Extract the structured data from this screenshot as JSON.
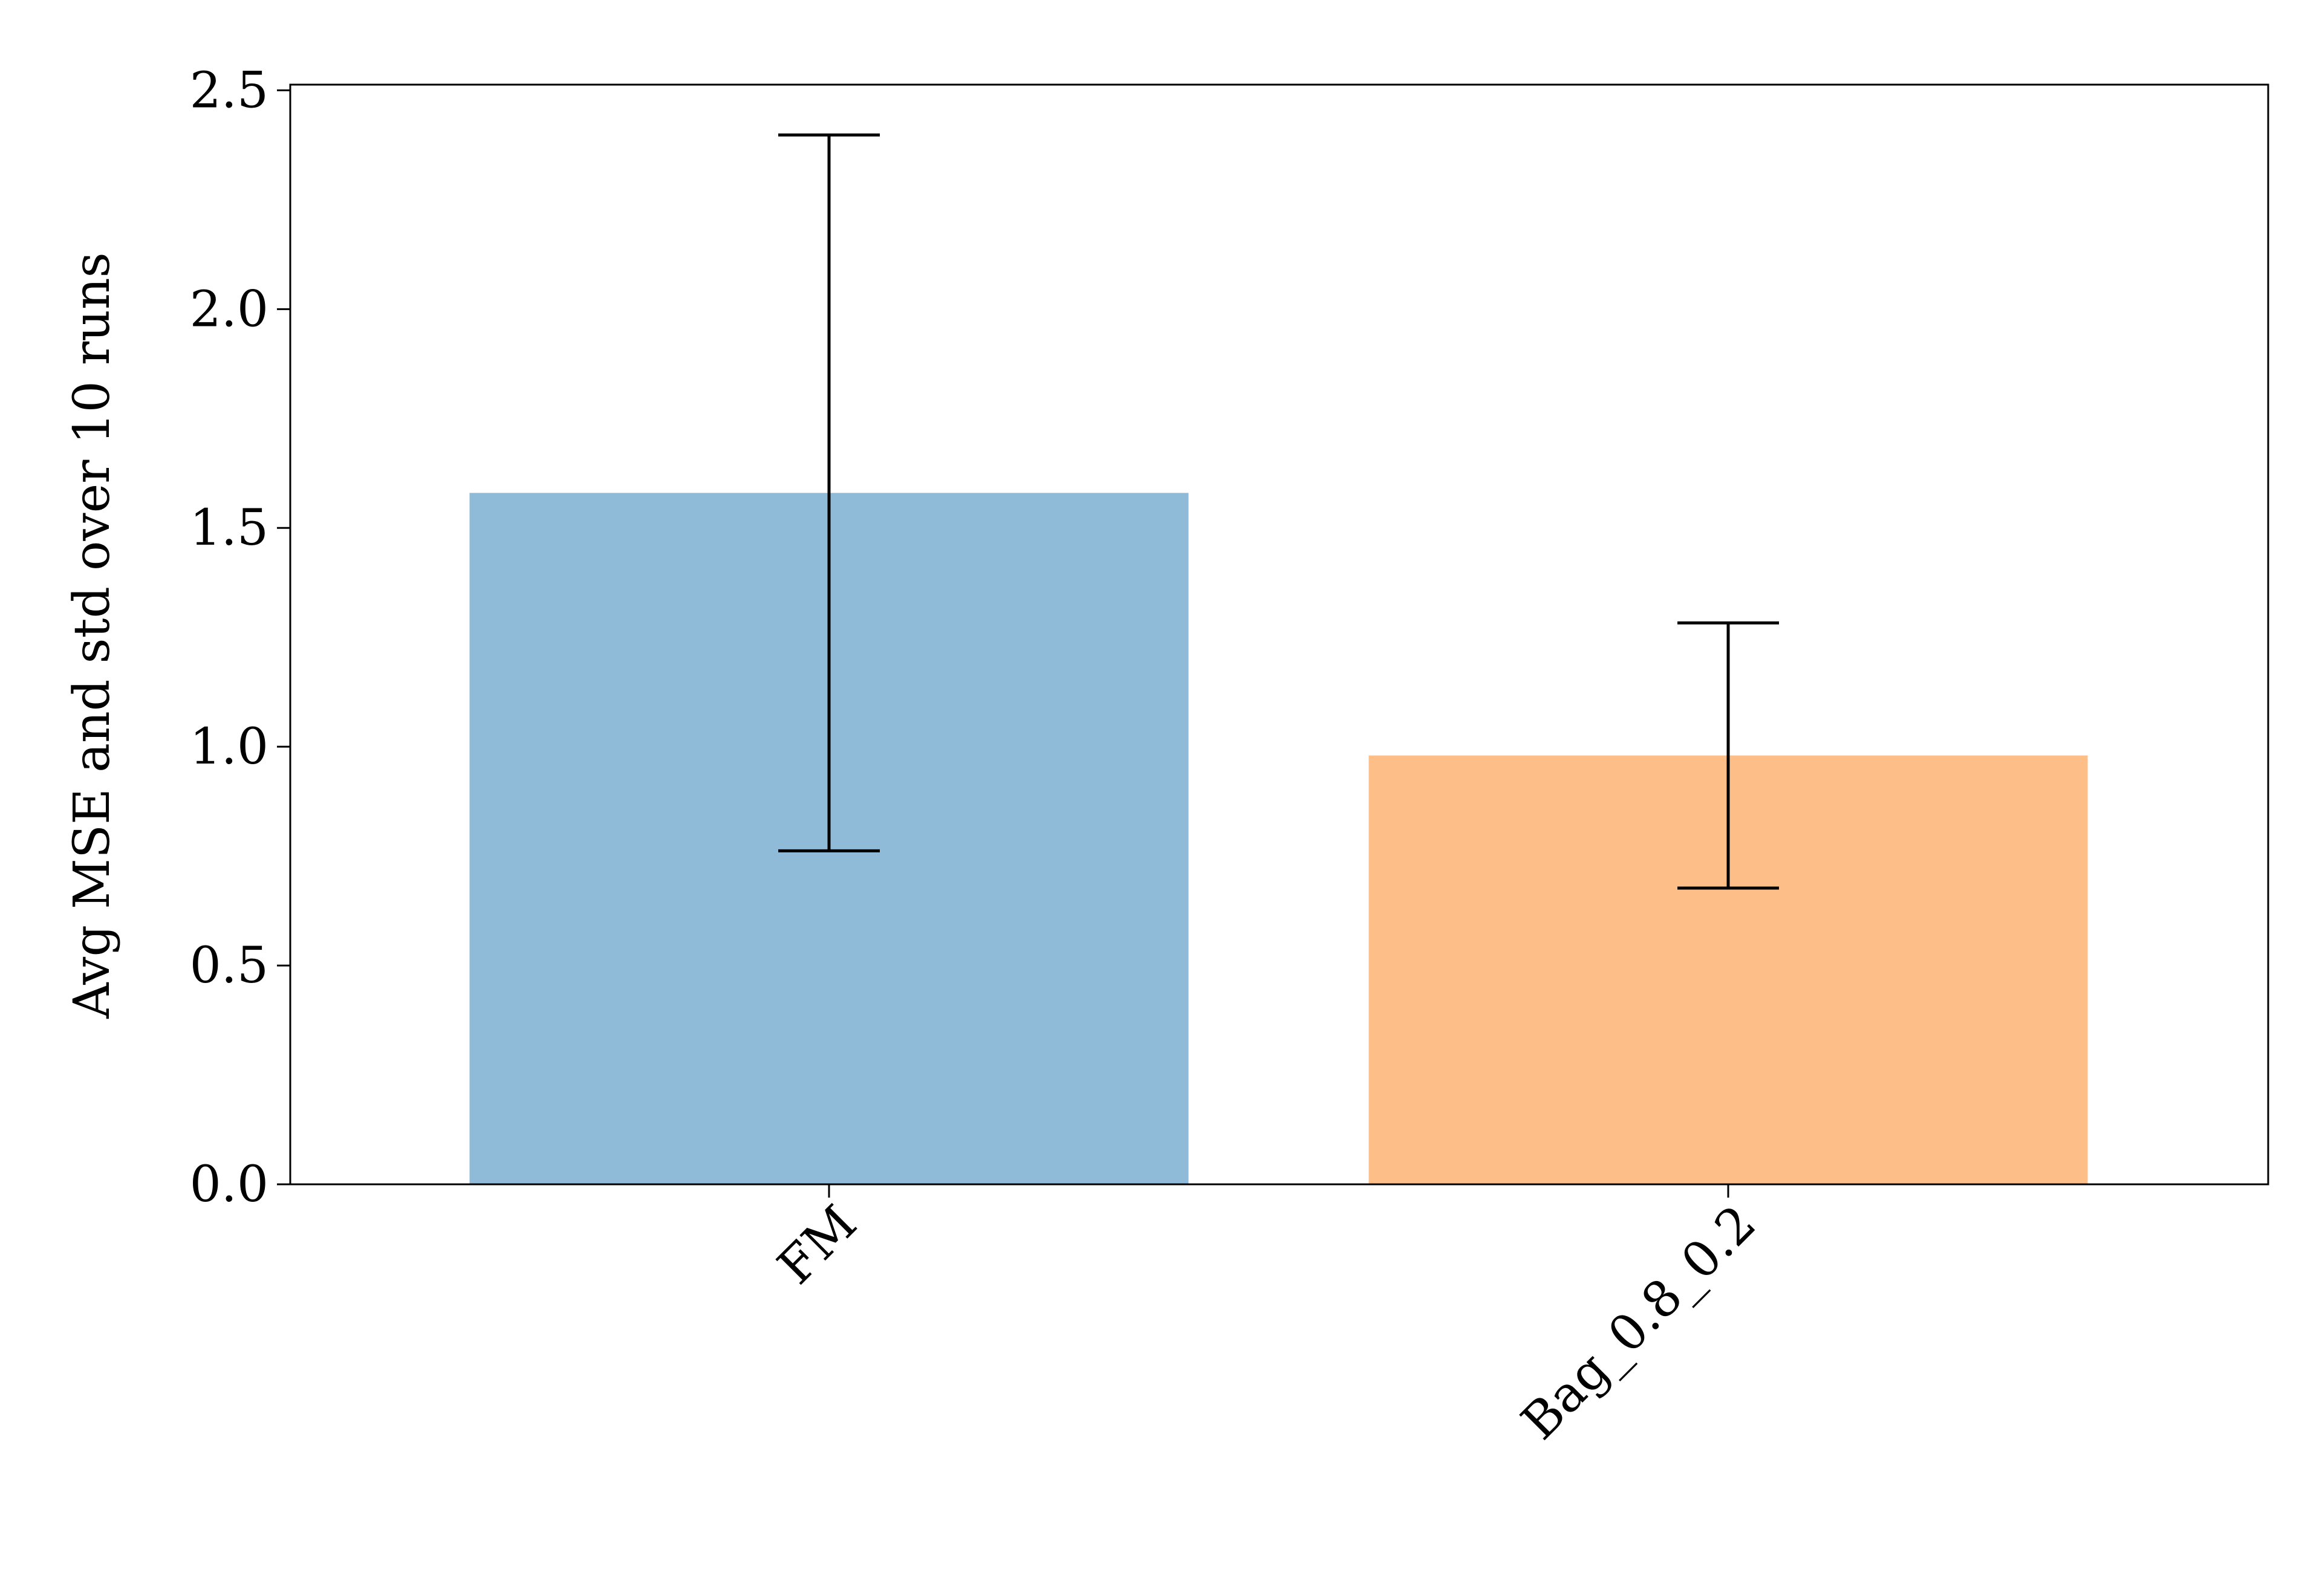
{
  "chart_data": {
    "type": "bar",
    "ylabel": "Avg MSE and std over 10 runs",
    "categories": [
      "FM",
      "Bag_0.8_0.2"
    ],
    "values": [
      1.58,
      0.98
    ],
    "errors": [
      0.818,
      0.303
    ],
    "colors": [
      "#8fbad8",
      "#fdbf87"
    ],
    "ylim": [
      0,
      2.513
    ],
    "yticks": [
      {
        "value": 0,
        "label": "0.0"
      },
      {
        "value": 0.5,
        "label": "0.5"
      },
      {
        "value": 1,
        "label": "1.0"
      },
      {
        "value": 1.5,
        "label": "1.5"
      },
      {
        "value": 2,
        "label": "2.0"
      },
      {
        "value": 2.5,
        "label": "2.5"
      }
    ]
  }
}
